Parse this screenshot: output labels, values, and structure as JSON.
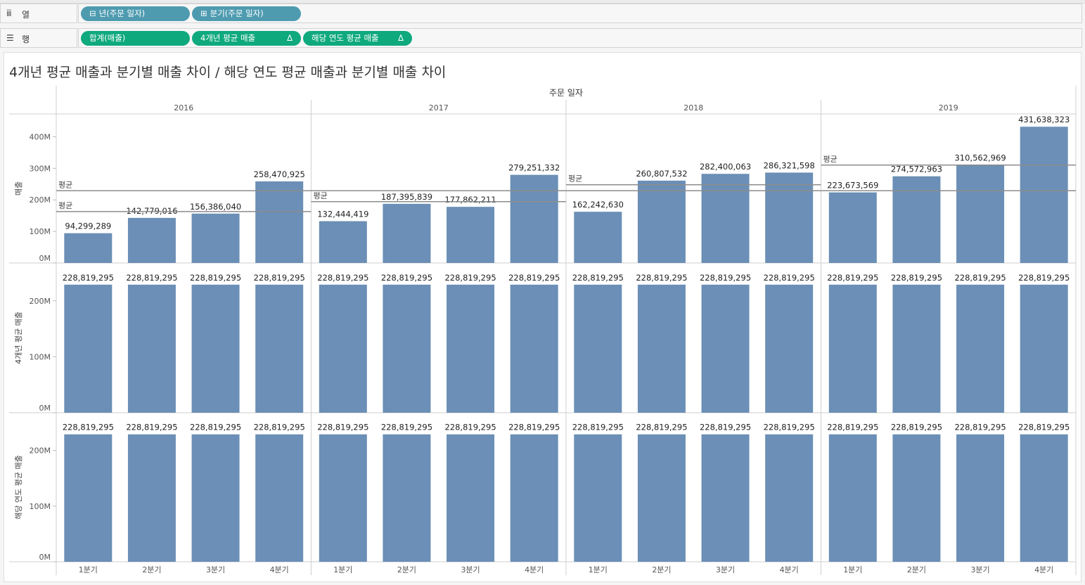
{
  "shelves": {
    "columns": {
      "icon": "columns-icon",
      "label": "열",
      "pills": [
        {
          "label": "년(주문 일자)",
          "icon": "⊟"
        },
        {
          "label": "분기(주문 일자)",
          "icon": "⊞"
        }
      ]
    },
    "rows": {
      "icon": "rows-icon",
      "label": "행",
      "pills": [
        {
          "label": "합계(매출)"
        },
        {
          "label": "4개년 평균 매출",
          "delta": "Δ"
        },
        {
          "label": "해당 연도 평균 매출",
          "delta": "Δ"
        }
      ]
    }
  },
  "colors": {
    "bar": "#6b8fb6",
    "pill_blue": "#4e9bb0",
    "pill_green": "#0fa97e",
    "ref_line": "#8c8c8c"
  },
  "chart_data": {
    "type": "bar",
    "title": "4개년 평균 매출과 분기별 매출 차이 / 해당 연도 평균 매출과 분기별 매출 차이",
    "column_header": "주문 일자",
    "years": [
      "2016",
      "2017",
      "2018",
      "2019"
    ],
    "categories": [
      "1분기",
      "2분기",
      "3분기",
      "4분기"
    ],
    "series": [
      {
        "name": "매출",
        "ylabel": "매출",
        "ylim": [
          0,
          450000000
        ],
        "ticks": [
          0,
          100000000,
          200000000,
          300000000,
          400000000
        ],
        "tick_labels": [
          "0M",
          "100M",
          "200M",
          "300M",
          "400M"
        ],
        "values": [
          [
            94299289,
            142779016,
            156386040,
            258470925
          ],
          [
            132444419,
            187395839,
            177862211,
            279251332
          ],
          [
            162242630,
            260807532,
            282400063,
            286321598
          ],
          [
            223673569,
            274572963,
            310562969,
            431638323
          ]
        ],
        "labels": [
          [
            "94,299,289",
            "142,779,016",
            "156,386,040",
            "258,470,925"
          ],
          [
            "132,444,419",
            "187,395,839",
            "177,862,211",
            "279,251,332"
          ],
          [
            "162,242,630",
            "260,807,532",
            "282,400,063",
            "286,321,598"
          ],
          [
            "223,673,569",
            "274,572,963",
            "310,562,969",
            "431,638,323"
          ]
        ],
        "reference_lines": {
          "label": "평균",
          "overall": 228819295,
          "per_year": [
            162983818,
            194238450,
            247942956,
            310111956
          ]
        }
      },
      {
        "name": "4개년 평균 매출",
        "ylabel": "4개년 평균 매출",
        "ylim": [
          0,
          255000000
        ],
        "ticks": [
          0,
          100000000,
          200000000
        ],
        "tick_labels": [
          "0M",
          "100M",
          "200M"
        ],
        "value": 228819295,
        "label": "228,819,295"
      },
      {
        "name": "해당 연도 평균 매출",
        "ylabel": "해당 연도 평균 매출",
        "ylim": [
          0,
          255000000
        ],
        "ticks": [
          0,
          100000000,
          200000000
        ],
        "tick_labels": [
          "0M",
          "100M",
          "200M"
        ],
        "value": 228819295,
        "label": "228,819,295"
      }
    ],
    "grid": false,
    "legend": "none"
  }
}
